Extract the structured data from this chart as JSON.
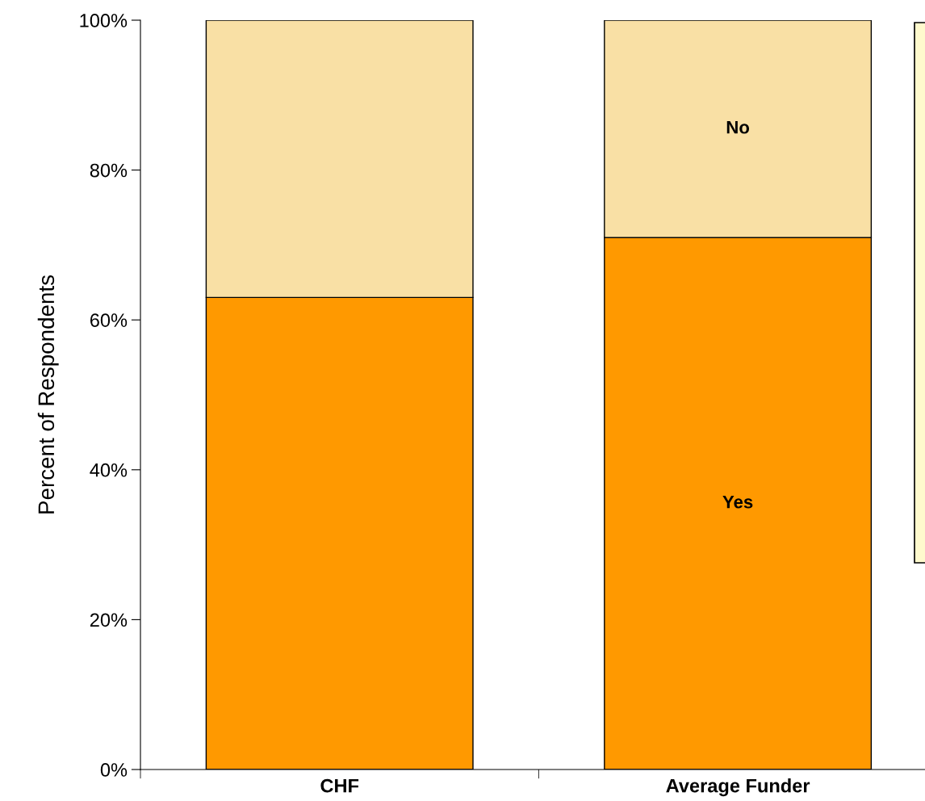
{
  "chart_data": {
    "type": "bar",
    "stacked": true,
    "ylabel": "Percent of Respondents",
    "categories": [
      "CHF",
      "Average Funder"
    ],
    "series": [
      {
        "name": "Yes",
        "color": "#ff9900",
        "values": [
          63,
          71
        ]
      },
      {
        "name": "No",
        "color": "#f9e0a5",
        "values": [
          37,
          29
        ]
      }
    ],
    "ylim": [
      0,
      100
    ],
    "yticks": [
      {
        "value": 0,
        "label": "0%"
      },
      {
        "value": 20,
        "label": "20%"
      },
      {
        "value": 40,
        "label": "40%"
      },
      {
        "value": 60,
        "label": "60%"
      },
      {
        "value": 80,
        "label": "80%"
      },
      {
        "value": 100,
        "label": "100%"
      }
    ],
    "grid": false,
    "legend": false
  }
}
